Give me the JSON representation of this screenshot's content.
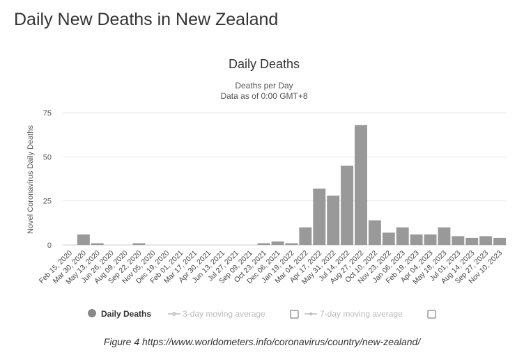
{
  "page": {
    "heading": "Daily New Deaths in New Zealand",
    "caption": "Figure 4 https://www.worldometers.info/coronavirus/country/new-zealand/"
  },
  "chart_data": {
    "type": "bar",
    "title": "Daily Deaths",
    "subtitle_line1": "Deaths per Day",
    "subtitle_line2": "Data as of 0:00 GMT+8",
    "ylabel": "Novel Coronavirus Daily Deaths",
    "xlabel": "",
    "ylim": [
      0,
      75
    ],
    "yticks": [
      0,
      25,
      50,
      75
    ],
    "grid": true,
    "legend_position": "bottom",
    "bar_color": "#999999",
    "categories": [
      "Feb 15, 2020",
      "Mar 30, 2020",
      "May 13, 2020",
      "Jun 26, 2020",
      "Aug 09, 2020",
      "Sep 22, 2020",
      "Nov 05, 2020",
      "Dec 19, 2020",
      "Feb 01, 2021",
      "Mar 17, 2021",
      "Apr 30, 2021",
      "Jun 13, 2021",
      "Jul 27, 2021",
      "Sep 09, 2021",
      "Oct 23, 2021",
      "Dec 06, 2021",
      "Jan 19, 2022",
      "Mar 04, 2022",
      "Apr 17, 2022",
      "May 31, 2022",
      "Jul 14, 2022",
      "Aug 27, 2022",
      "Oct 10, 2022",
      "Nov 23, 2022",
      "Jan 06, 2023",
      "Feb 19, 2023",
      "Apr 04, 2023",
      "May 18, 2023",
      "Jul 01, 2023",
      "Aug 14, 2023",
      "Sep 27, 2023",
      "Nov 10, 2023"
    ],
    "values": [
      0,
      6,
      1,
      0,
      0,
      1,
      0,
      0,
      0,
      0,
      0,
      0,
      0,
      0,
      1,
      2,
      1,
      10,
      32,
      28,
      45,
      68,
      14,
      7,
      10,
      6,
      6,
      10,
      5,
      4,
      5,
      4
    ],
    "series": [
      {
        "name": "Daily Deaths",
        "color": "#888888",
        "enabled": true
      },
      {
        "name": "3-day moving average",
        "color": "#cccccc",
        "enabled": false
      },
      {
        "name": "7-day moving average",
        "color": "#cccccc",
        "enabled": false
      }
    ]
  }
}
